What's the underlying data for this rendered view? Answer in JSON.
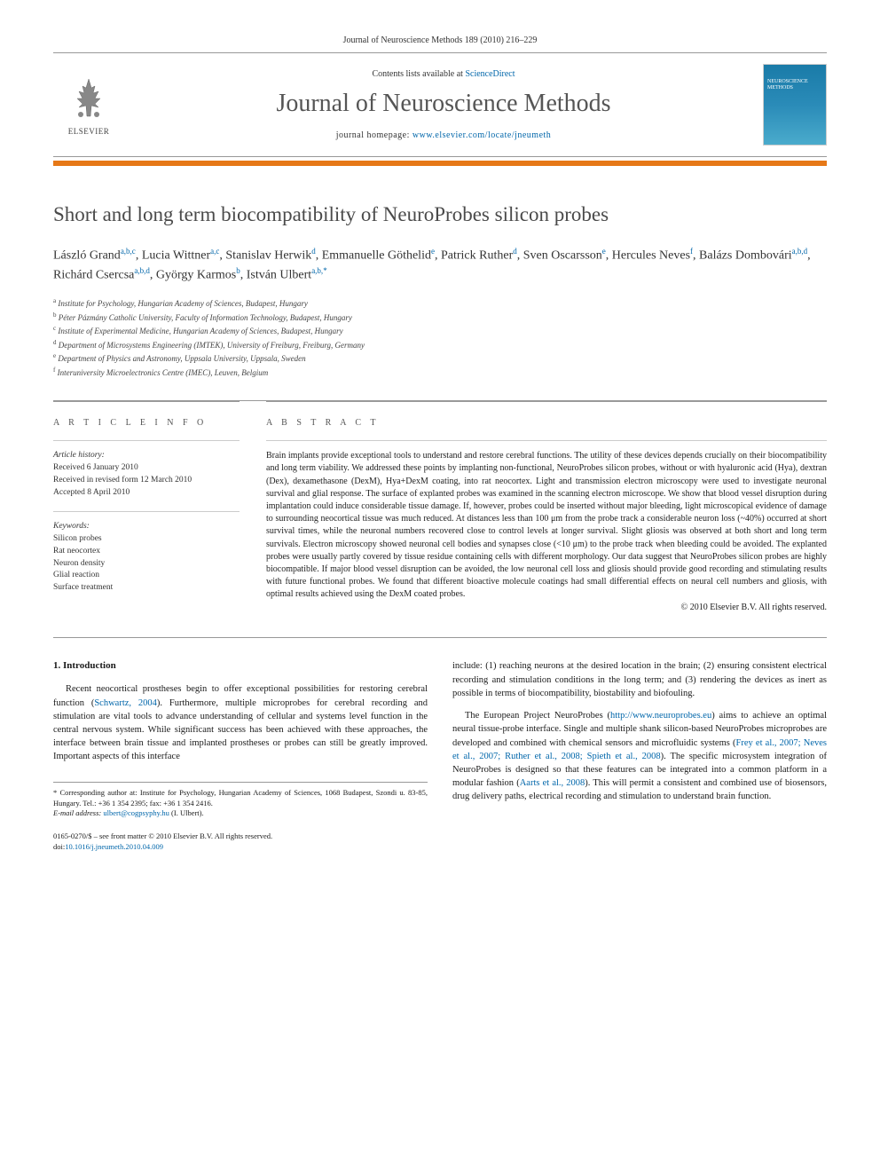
{
  "header": {
    "journal_ref": "Journal of Neuroscience Methods 189 (2010) 216–229",
    "contents_text": "Contents lists available at ",
    "contents_link": "ScienceDirect",
    "journal_name": "Journal of Neuroscience Methods",
    "homepage_label": "journal homepage: ",
    "homepage_url": "www.elsevier.com/locate/jneumeth",
    "elsevier_label": "ELSEVIER",
    "cover_text": "NEUROSCIENCE METHODS"
  },
  "colors": {
    "accent_bar": "#e67817",
    "link": "#0066aa",
    "cover_gradient_top": "#1a7ba8",
    "cover_gradient_bottom": "#4aabcc"
  },
  "article": {
    "title": "Short and long term biocompatibility of NeuroProbes silicon probes",
    "authors_html": "László Grand<span class='sup'>a,b,c</span>, Lucia Wittner<span class='sup'>a,c</span>, Stanislav Herwik<span class='sup'>d</span>, Emmanuelle Göthelid<span class='sup'>e</span>, Patrick Ruther<span class='sup'>d</span>, Sven Oscarsson<span class='sup'>e</span>, Hercules Neves<span class='sup'>f</span>, Balázs Dombovári<span class='sup'>a,b,d</span>, Richárd Csercsa<span class='sup'>a,b,d</span>, György Karmos<span class='sup'>b</span>, István Ulbert<span class='sup'>a,b,</span><span class='sup'>*</span>",
    "affiliations": [
      {
        "sup": "a",
        "text": "Institute for Psychology, Hungarian Academy of Sciences, Budapest, Hungary"
      },
      {
        "sup": "b",
        "text": "Péter Pázmány Catholic University, Faculty of Information Technology, Budapest, Hungary"
      },
      {
        "sup": "c",
        "text": "Institute of Experimental Medicine, Hungarian Academy of Sciences, Budapest, Hungary"
      },
      {
        "sup": "d",
        "text": "Department of Microsystems Engineering (IMTEK), University of Freiburg, Freiburg, Germany"
      },
      {
        "sup": "e",
        "text": "Department of Physics and Astronomy, Uppsala University, Uppsala, Sweden"
      },
      {
        "sup": "f",
        "text": "Interuniversity Microelectronics Centre (IMEC), Leuven, Belgium"
      }
    ]
  },
  "info": {
    "section_label": "A R T I C L E   I N F O",
    "history_label": "Article history:",
    "history": [
      "Received 6 January 2010",
      "Received in revised form 12 March 2010",
      "Accepted 8 April 2010"
    ],
    "keywords_label": "Keywords:",
    "keywords": [
      "Silicon probes",
      "Rat neocortex",
      "Neuron density",
      "Glial reaction",
      "Surface treatment"
    ]
  },
  "abstract": {
    "section_label": "A B S T R A C T",
    "text": "Brain implants provide exceptional tools to understand and restore cerebral functions. The utility of these devices depends crucially on their biocompatibility and long term viability. We addressed these points by implanting non-functional, NeuroProbes silicon probes, without or with hyaluronic acid (Hya), dextran (Dex), dexamethasone (DexM), Hya+DexM coating, into rat neocortex. Light and transmission electron microscopy were used to investigate neuronal survival and glial response. The surface of explanted probes was examined in the scanning electron microscope. We show that blood vessel disruption during implantation could induce considerable tissue damage. If, however, probes could be inserted without major bleeding, light microscopical evidence of damage to surrounding neocortical tissue was much reduced. At distances less than 100 μm from the probe track a considerable neuron loss (~40%) occurred at short survival times, while the neuronal numbers recovered close to control levels at longer survival. Slight gliosis was observed at both short and long term survivals. Electron microscopy showed neuronal cell bodies and synapses close (<10 μm) to the probe track when bleeding could be avoided. The explanted probes were usually partly covered by tissue residue containing cells with different morphology. Our data suggest that NeuroProbes silicon probes are highly biocompatible. If major blood vessel disruption can be avoided, the low neuronal cell loss and gliosis should provide good recording and stimulating results with future functional probes. We found that different bioactive molecule coatings had small differential effects on neural cell numbers and gliosis, with optimal results achieved using the DexM coated probes.",
    "copyright": "© 2010 Elsevier B.V. All rights reserved."
  },
  "body": {
    "heading": "1. Introduction",
    "col1_p1_pre": "Recent neocortical prostheses begin to offer exceptional possibilities for restoring cerebral function (",
    "col1_p1_link": "Schwartz, 2004",
    "col1_p1_post": "). Furthermore, multiple microprobes for cerebral recording and stimulation are vital tools to advance understanding of cellular and systems level function in the central nervous system. While significant success has been achieved with these approaches, the interface between brain tissue and implanted prostheses or probes can still be greatly improved. Important aspects of this interface",
    "col2_p1": "include: (1) reaching neurons at the desired location in the brain; (2) ensuring consistent electrical recording and stimulation conditions in the long term; and (3) rendering the devices as inert as possible in terms of biocompatibility, biostability and biofouling.",
    "col2_p2_a": "The European Project NeuroProbes (",
    "col2_p2_link1": "http://www.neuroprobes.eu",
    "col2_p2_b": ") aims to achieve an optimal neural tissue-probe interface. Single and multiple shank silicon-based NeuroProbes microprobes are developed and combined with chemical sensors and microfluidic systems (",
    "col2_p2_link2": "Frey et al., 2007; Neves et al., 2007; Ruther et al., 2008; Spieth et al., 2008",
    "col2_p2_c": "). The specific microsystem integration of NeuroProbes is designed so that these features can be integrated into a common platform in a modular fashion (",
    "col2_p2_link3": "Aarts et al., 2008",
    "col2_p2_d": "). This will permit a consistent and combined use of biosensors, drug delivery paths, electrical recording and stimulation to understand brain function."
  },
  "footnote": {
    "corr": "* Corresponding author at: Institute for Psychology, Hungarian Academy of Sciences, 1068 Budapest, Szondi u. 83-85, Hungary. Tel.: +36 1 354 2395; fax: +36 1 354 2416.",
    "email_label": "E-mail address: ",
    "email": "ulbert@cogpsyphy.hu",
    "email_who": " (I. Ulbert)."
  },
  "doi": {
    "line1": "0165-0270/$ – see front matter © 2010 Elsevier B.V. All rights reserved.",
    "line2_label": "doi:",
    "line2_link": "10.1016/j.jneumeth.2010.04.009"
  }
}
